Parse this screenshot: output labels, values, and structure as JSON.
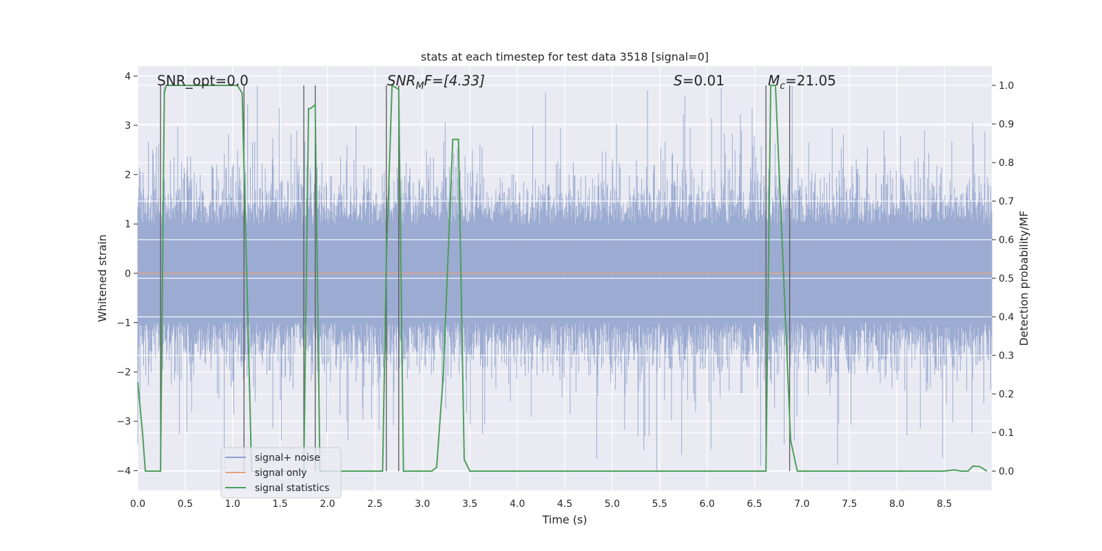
{
  "chart_data": {
    "type": "line",
    "title": "stats at each timestep for test data 3518 [signal=0]",
    "xlabel": "Time (s)",
    "ylabel_left": "Whitened strain",
    "ylabel_right": "Detection probability/MF",
    "xlim": [
      0,
      9.0
    ],
    "ylim_left": [
      -4.4,
      4.2
    ],
    "ylim_right": [
      -0.05,
      1.05
    ],
    "xticks": [
      "0.0",
      "0.5",
      "1.0",
      "1.5",
      "2.0",
      "2.5",
      "3.0",
      "3.5",
      "4.0",
      "4.5",
      "5.0",
      "5.5",
      "6.0",
      "6.5",
      "7.0",
      "7.5",
      "8.0",
      "8.5"
    ],
    "yticks_left": [
      "4",
      "3",
      "2",
      "1",
      "0",
      "−1",
      "−2",
      "−3",
      "−4"
    ],
    "yticks_right": [
      "1.0",
      "0.9",
      "0.8",
      "0.7",
      "0.6",
      "0.5",
      "0.4",
      "0.3",
      "0.2",
      "0.1",
      "0.0"
    ],
    "annotations": {
      "snr_opt": "SNR_opt=0.0",
      "snr_mf_main": "SNR",
      "snr_mf_sub": "M",
      "snr_mf_rest": "F=[4.33]",
      "s_main": "S",
      "s_rest": "=0.01",
      "mc_main": "M",
      "mc_sub": "c",
      "mc_rest": "=21.05"
    },
    "vlines": [
      0.24,
      1.12,
      1.75,
      1.87,
      2.62,
      2.75,
      6.62,
      6.87
    ],
    "legend": {
      "position": "lower-left",
      "entries": [
        "signal+ noise",
        "signal only",
        "signal statistics"
      ]
    },
    "series": [
      {
        "name": "signal+ noise",
        "color": "#8da0cb",
        "axis": "left",
        "description": "dense whitened noise, amplitude about ±1.5 with spikes to ±3.5"
      },
      {
        "name": "signal only",
        "color": "#e5a07f",
        "axis": "left",
        "x": [
          0,
          9.0
        ],
        "y": [
          0,
          0
        ]
      },
      {
        "name": "signal statistics",
        "color": "#4c9e5a",
        "axis": "right",
        "x": [
          0.0,
          0.05,
          0.08,
          0.24,
          0.28,
          0.3,
          1.05,
          1.1,
          1.15,
          1.2,
          1.6,
          1.7,
          1.75,
          1.8,
          1.82,
          1.87,
          1.92,
          1.97,
          2.0,
          2.55,
          2.58,
          2.62,
          2.68,
          2.75,
          2.8,
          2.88,
          3.1,
          3.15,
          3.22,
          3.32,
          3.38,
          3.44,
          3.5,
          6.4,
          6.5,
          6.62,
          6.67,
          6.72,
          6.88,
          6.95,
          7.0,
          8.5,
          8.6,
          8.68,
          8.75,
          8.8,
          8.87,
          8.95
        ],
        "y": [
          0.23,
          0.1,
          0.0,
          0.0,
          0.98,
          1.0,
          1.0,
          0.98,
          0.5,
          0.0,
          0.0,
          0.0,
          0.0,
          0.94,
          0.94,
          0.95,
          0.0,
          0.0,
          0.0,
          0.0,
          0.0,
          0.55,
          1.0,
          0.99,
          0.0,
          0.0,
          0.0,
          0.01,
          0.25,
          0.86,
          0.86,
          0.03,
          0.0,
          0.0,
          0.0,
          0.0,
          1.0,
          1.0,
          0.08,
          0.0,
          0.0,
          0.0,
          0.003,
          0.0,
          0.0,
          0.013,
          0.012,
          0.0
        ]
      }
    ]
  }
}
